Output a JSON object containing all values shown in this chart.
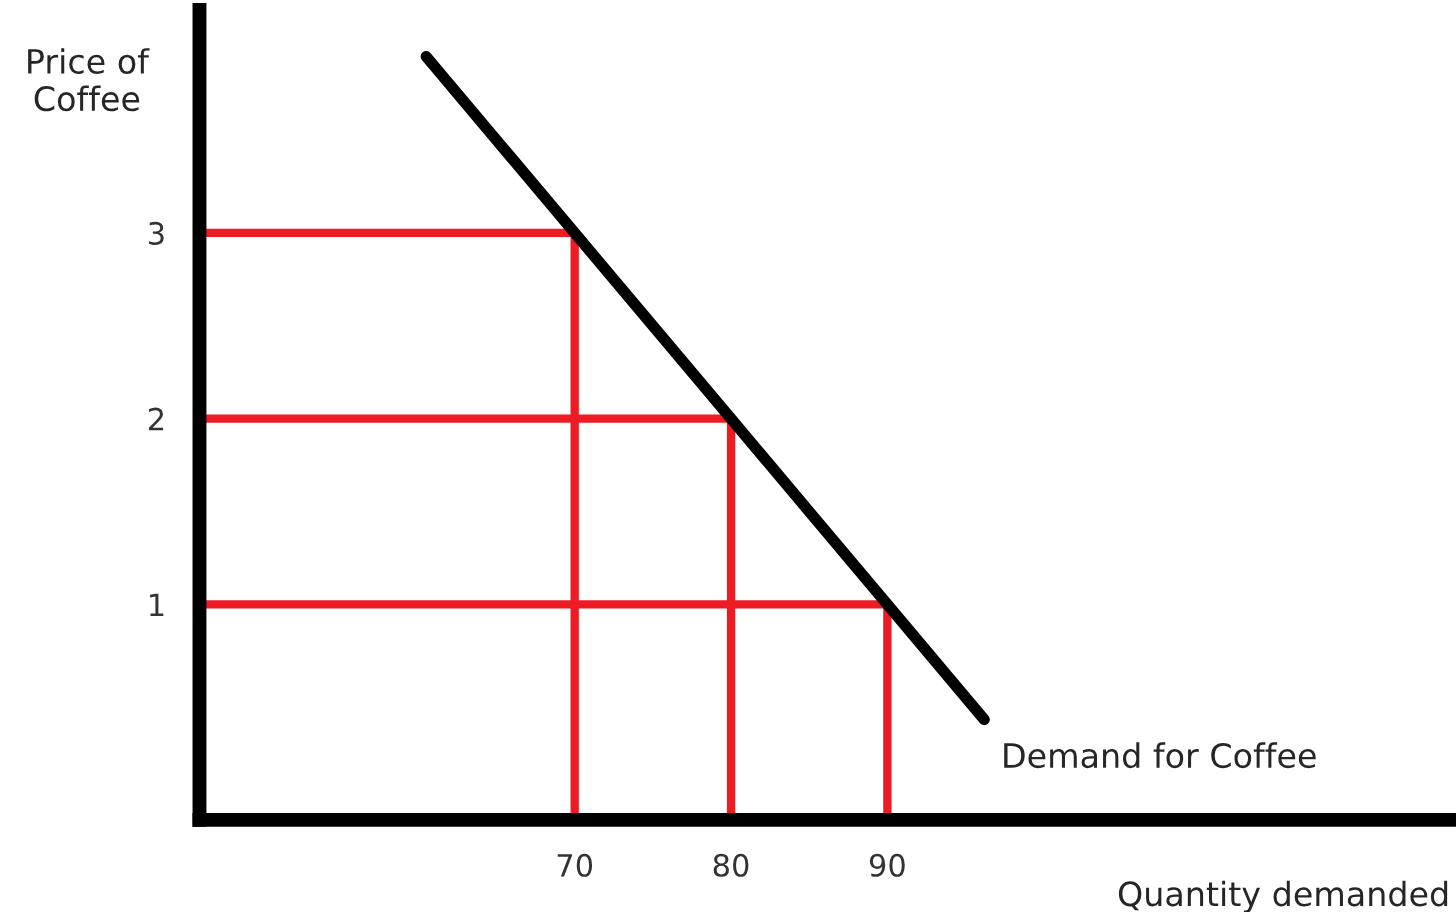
{
  "chart_data": {
    "type": "line",
    "xlabel": "Quantity demanded",
    "ylabel": "Price of\nCoffee",
    "xlim": [
      46,
      126
    ],
    "ylim": [
      -0.16,
      4.2
    ],
    "xticks": [
      70,
      80,
      90
    ],
    "yticks": [
      1,
      2,
      3
    ],
    "grid": false,
    "legend": false,
    "marker": "none",
    "line_style": "solid",
    "series": [
      {
        "color": "#000000",
        "x": [
          60.5,
          70,
          80,
          90,
          96.2
        ],
        "values": [
          3.95,
          3,
          2,
          1,
          0.38
        ]
      },
      {
        "color": "#ed1c24",
        "x": [
          46,
          70,
          70
        ],
        "values": [
          3,
          3,
          -0.16
        ]
      },
      {
        "color": "#ed1c24",
        "x": [
          46,
          80,
          80
        ],
        "values": [
          2,
          2,
          -0.16
        ]
      },
      {
        "color": "#ed1c24",
        "x": [
          46,
          90,
          90
        ],
        "values": [
          1,
          1,
          -0.16
        ]
      }
    ],
    "annotations": [
      {
        "text": "Demand for Coffee",
        "x": 96.2,
        "y": 0.38
      }
    ]
  }
}
